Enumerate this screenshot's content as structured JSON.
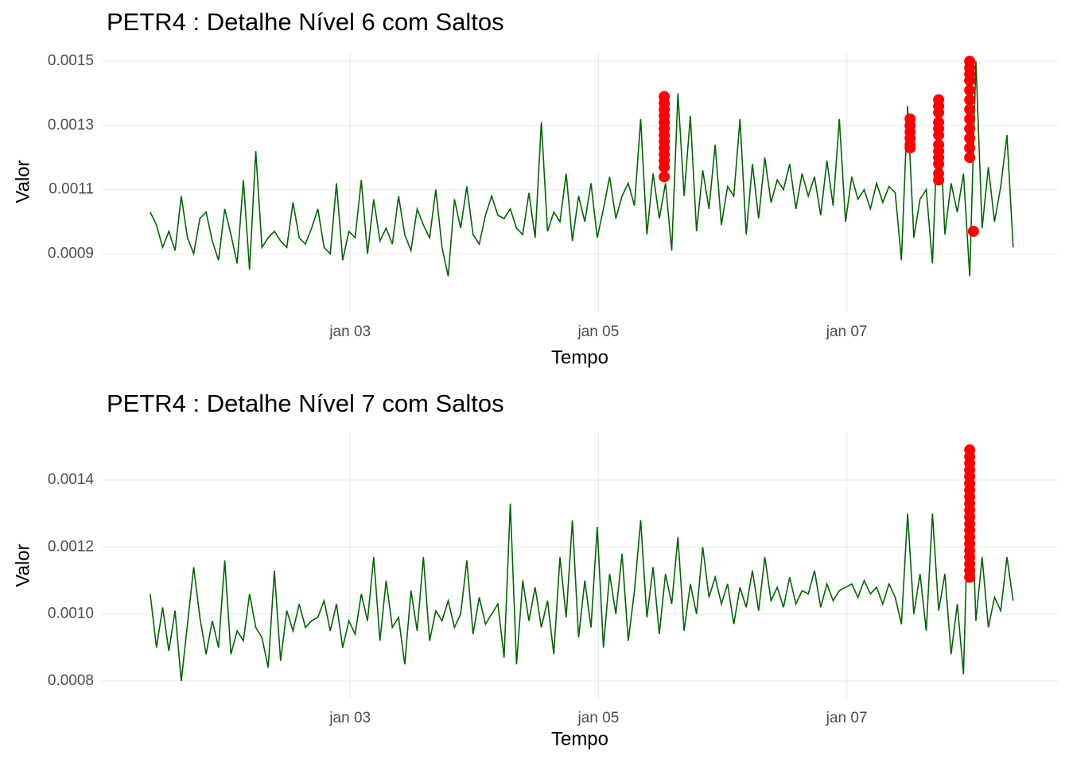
{
  "chart_data": [
    {
      "type": "line",
      "title": "PETR4 : Detalhe Nível 6 com Saltos",
      "x_label": "Tempo",
      "y_label": "Valor",
      "x": [
        1.39,
        1.44,
        1.49,
        1.54,
        1.59,
        1.64,
        1.69,
        1.74,
        1.79,
        1.84,
        1.89,
        1.94,
        1.99,
        2.04,
        2.09,
        2.14,
        2.19,
        2.24,
        2.29,
        2.34,
        2.39,
        2.44,
        2.49,
        2.54,
        2.59,
        2.64,
        2.69,
        2.74,
        2.79,
        2.84,
        2.89,
        2.94,
        2.99,
        3.04,
        3.09,
        3.14,
        3.19,
        3.24,
        3.29,
        3.34,
        3.39,
        3.44,
        3.49,
        3.54,
        3.59,
        3.64,
        3.69,
        3.74,
        3.79,
        3.84,
        3.89,
        3.94,
        3.99,
        4.04,
        4.09,
        4.14,
        4.19,
        4.24,
        4.29,
        4.34,
        4.39,
        4.44,
        4.49,
        4.54,
        4.59,
        4.64,
        4.69,
        4.74,
        4.79,
        4.84,
        4.89,
        4.94,
        4.99,
        5.04,
        5.09,
        5.14,
        5.19,
        5.24,
        5.29,
        5.34,
        5.39,
        5.44,
        5.49,
        5.54,
        5.59,
        5.64,
        5.69,
        5.74,
        5.79,
        5.84,
        5.89,
        5.94,
        5.99,
        6.04,
        6.09,
        6.14,
        6.19,
        6.24,
        6.29,
        6.34,
        6.39,
        6.44,
        6.49,
        6.54,
        6.59,
        6.64,
        6.69,
        6.74,
        6.79,
        6.84,
        6.89,
        6.94,
        6.99,
        7.04,
        7.09,
        7.14,
        7.19,
        7.24,
        7.29,
        7.34,
        7.39,
        7.44,
        7.49,
        7.54,
        7.59,
        7.64,
        7.69,
        7.74,
        7.79,
        7.84,
        7.89,
        7.94,
        7.99,
        8.04,
        8.09,
        8.14,
        8.19,
        8.24,
        8.29,
        8.34
      ],
      "series": [
        {
          "color": "#006400",
          "values": [
            0.00103,
            0.00099,
            0.00092,
            0.00097,
            0.00091,
            0.00108,
            0.00095,
            0.0009,
            0.00101,
            0.00103,
            0.00094,
            0.00088,
            0.00104,
            0.00096,
            0.00087,
            0.00113,
            0.00085,
            0.00122,
            0.00092,
            0.00095,
            0.00097,
            0.00094,
            0.00092,
            0.00106,
            0.00095,
            0.00093,
            0.00098,
            0.00104,
            0.00092,
            0.0009,
            0.00112,
            0.00088,
            0.00097,
            0.00095,
            0.00113,
            0.0009,
            0.00107,
            0.00094,
            0.00098,
            0.00093,
            0.00108,
            0.00096,
            0.00091,
            0.00104,
            0.00099,
            0.00095,
            0.0011,
            0.00092,
            0.00083,
            0.00107,
            0.00098,
            0.00111,
            0.00096,
            0.00093,
            0.00102,
            0.00108,
            0.00102,
            0.00101,
            0.00104,
            0.00098,
            0.00096,
            0.00109,
            0.00095,
            0.00131,
            0.00097,
            0.00103,
            0.001,
            0.00115,
            0.00094,
            0.00108,
            0.001,
            0.00112,
            0.00095,
            0.00104,
            0.00114,
            0.00101,
            0.00108,
            0.00112,
            0.00105,
            0.00132,
            0.00096,
            0.00115,
            0.00101,
            0.00112,
            0.00091,
            0.0014,
            0.00108,
            0.00133,
            0.00097,
            0.00116,
            0.00104,
            0.00124,
            0.00099,
            0.00111,
            0.00108,
            0.00132,
            0.00096,
            0.00118,
            0.00101,
            0.0012,
            0.00106,
            0.00113,
            0.0011,
            0.00118,
            0.00104,
            0.00115,
            0.00108,
            0.00114,
            0.00102,
            0.00119,
            0.00105,
            0.00132,
            0.001,
            0.00114,
            0.00107,
            0.0011,
            0.00104,
            0.00112,
            0.00106,
            0.00111,
            0.00109,
            0.00088,
            0.00136,
            0.00095,
            0.00107,
            0.0011,
            0.00087,
            0.00138,
            0.00096,
            0.00112,
            0.00103,
            0.00115,
            0.00083,
            0.0015,
            0.00098,
            0.00117,
            0.001,
            0.00111,
            0.00127,
            0.00092
          ]
        },
        {
          "type": "scatter",
          "color": "#ff0000",
          "x": [
            5.53,
            5.53,
            5.53,
            5.53,
            5.53,
            5.53,
            5.53,
            5.53,
            5.53,
            5.53,
            5.53,
            5.53,
            5.53,
            7.51,
            7.51,
            7.51,
            7.51,
            7.51,
            7.51,
            7.74,
            7.74,
            7.74,
            7.74,
            7.74,
            7.74,
            7.74,
            7.74,
            7.74,
            7.74,
            7.74,
            7.74,
            7.99,
            7.99,
            7.99,
            7.99,
            7.99,
            7.99,
            7.99,
            7.99,
            7.99,
            7.99,
            7.99,
            7.99,
            8.02
          ],
          "values": [
            0.00139,
            0.00137,
            0.00135,
            0.00133,
            0.00131,
            0.00129,
            0.00127,
            0.00125,
            0.00123,
            0.00121,
            0.00119,
            0.00117,
            0.00114,
            0.00132,
            0.0013,
            0.00128,
            0.00126,
            0.00124,
            0.00123,
            0.00138,
            0.00136,
            0.00134,
            0.00131,
            0.00129,
            0.00127,
            0.00124,
            0.00122,
            0.0012,
            0.00118,
            0.00115,
            0.00113,
            0.0015,
            0.00148,
            0.00146,
            0.00144,
            0.00141,
            0.00138,
            0.00135,
            0.00132,
            0.00129,
            0.00126,
            0.00123,
            0.0012,
            0.00097
          ]
        }
      ],
      "xlim": [
        1.0,
        8.7
      ],
      "xticks": [
        {
          "value": 3,
          "label": "jan 03"
        },
        {
          "value": 5,
          "label": "jan 05"
        },
        {
          "value": 7,
          "label": "jan 07"
        }
      ],
      "ylim": [
        0.00072,
        0.00153
      ],
      "yticks": [
        0.0009,
        0.0011,
        0.0013,
        0.0015
      ],
      "grid": true
    },
    {
      "type": "line",
      "title": "PETR4 : Detalhe Nível 7 com Saltos",
      "x_label": "Tempo",
      "y_label": "Valor",
      "x": [
        1.39,
        1.44,
        1.49,
        1.54,
        1.59,
        1.64,
        1.69,
        1.74,
        1.79,
        1.84,
        1.89,
        1.94,
        1.99,
        2.04,
        2.09,
        2.14,
        2.19,
        2.24,
        2.29,
        2.34,
        2.39,
        2.44,
        2.49,
        2.54,
        2.59,
        2.64,
        2.69,
        2.74,
        2.79,
        2.84,
        2.89,
        2.94,
        2.99,
        3.04,
        3.09,
        3.14,
        3.19,
        3.24,
        3.29,
        3.34,
        3.39,
        3.44,
        3.49,
        3.54,
        3.59,
        3.64,
        3.69,
        3.74,
        3.79,
        3.84,
        3.89,
        3.94,
        3.99,
        4.04,
        4.09,
        4.14,
        4.19,
        4.24,
        4.29,
        4.34,
        4.39,
        4.44,
        4.49,
        4.54,
        4.59,
        4.64,
        4.69,
        4.74,
        4.79,
        4.84,
        4.89,
        4.94,
        4.99,
        5.04,
        5.09,
        5.14,
        5.19,
        5.24,
        5.29,
        5.34,
        5.39,
        5.44,
        5.49,
        5.54,
        5.59,
        5.64,
        5.69,
        5.74,
        5.79,
        5.84,
        5.89,
        5.94,
        5.99,
        6.04,
        6.09,
        6.14,
        6.19,
        6.24,
        6.29,
        6.34,
        6.39,
        6.44,
        6.49,
        6.54,
        6.59,
        6.64,
        6.69,
        6.74,
        6.79,
        6.84,
        6.89,
        6.94,
        6.99,
        7.04,
        7.09,
        7.14,
        7.19,
        7.24,
        7.29,
        7.34,
        7.39,
        7.44,
        7.49,
        7.54,
        7.59,
        7.64,
        7.69,
        7.74,
        7.79,
        7.84,
        7.89,
        7.94,
        7.99,
        8.04,
        8.09,
        8.14,
        8.19,
        8.24,
        8.29,
        8.34
      ],
      "series": [
        {
          "color": "#006400",
          "values": [
            0.00106,
            0.0009,
            0.00102,
            0.00089,
            0.00101,
            0.0008,
            0.00097,
            0.00114,
            0.00099,
            0.00088,
            0.00098,
            0.0009,
            0.00116,
            0.00088,
            0.00095,
            0.00092,
            0.00106,
            0.00096,
            0.00093,
            0.00084,
            0.00113,
            0.00086,
            0.00101,
            0.00095,
            0.00103,
            0.00096,
            0.00098,
            0.00099,
            0.00104,
            0.00095,
            0.00103,
            0.0009,
            0.00098,
            0.00094,
            0.00106,
            0.00098,
            0.00117,
            0.00092,
            0.0011,
            0.00096,
            0.00099,
            0.00085,
            0.00107,
            0.00095,
            0.00117,
            0.00092,
            0.00101,
            0.00098,
            0.00104,
            0.00096,
            0.001,
            0.00116,
            0.00094,
            0.00105,
            0.00097,
            0.001,
            0.00103,
            0.00087,
            0.00133,
            0.00085,
            0.0011,
            0.00098,
            0.00108,
            0.00096,
            0.00104,
            0.00088,
            0.00117,
            0.00099,
            0.00128,
            0.00093,
            0.0011,
            0.00096,
            0.00126,
            0.0009,
            0.00112,
            0.001,
            0.00118,
            0.00092,
            0.00107,
            0.00128,
            0.00099,
            0.00114,
            0.00094,
            0.00112,
            0.00103,
            0.00123,
            0.00095,
            0.00109,
            0.001,
            0.0012,
            0.00105,
            0.00111,
            0.00103,
            0.00109,
            0.00097,
            0.00108,
            0.00102,
            0.00113,
            0.00101,
            0.00117,
            0.00104,
            0.00108,
            0.00102,
            0.00111,
            0.00103,
            0.00107,
            0.00106,
            0.00113,
            0.00102,
            0.00109,
            0.00104,
            0.00107,
            0.00108,
            0.00109,
            0.00105,
            0.0011,
            0.00106,
            0.00108,
            0.00103,
            0.00109,
            0.00105,
            0.00097,
            0.0013,
            0.001,
            0.00112,
            0.00095,
            0.0013,
            0.00101,
            0.00112,
            0.00088,
            0.00103,
            0.00082,
            0.00149,
            0.00098,
            0.00117,
            0.00096,
            0.00105,
            0.00101,
            0.00117,
            0.00104
          ]
        },
        {
          "type": "scatter",
          "color": "#ff0000",
          "x": [
            7.99,
            7.99,
            7.99,
            7.99,
            7.99,
            7.99,
            7.99,
            7.99,
            7.99,
            7.99,
            7.99,
            7.99,
            7.99,
            7.99,
            7.99,
            7.99,
            7.99,
            7.99,
            7.99,
            7.99
          ],
          "values": [
            0.00149,
            0.00147,
            0.00145,
            0.00143,
            0.00141,
            0.00139,
            0.00137,
            0.00135,
            0.00133,
            0.00131,
            0.00129,
            0.00127,
            0.00125,
            0.00123,
            0.00121,
            0.00119,
            0.00117,
            0.00115,
            0.00113,
            0.00111
          ]
        }
      ],
      "xlim": [
        1.0,
        8.7
      ],
      "xticks": [
        {
          "value": 3,
          "label": "jan 03"
        },
        {
          "value": 5,
          "label": "jan 05"
        },
        {
          "value": 7,
          "label": "jan 07"
        }
      ],
      "ylim": [
        0.00075,
        0.00154
      ],
      "yticks": [
        0.0008,
        {
          "value": 0.001,
          "label": "0.0010"
        },
        0.0012,
        0.0014
      ],
      "grid": true
    }
  ]
}
